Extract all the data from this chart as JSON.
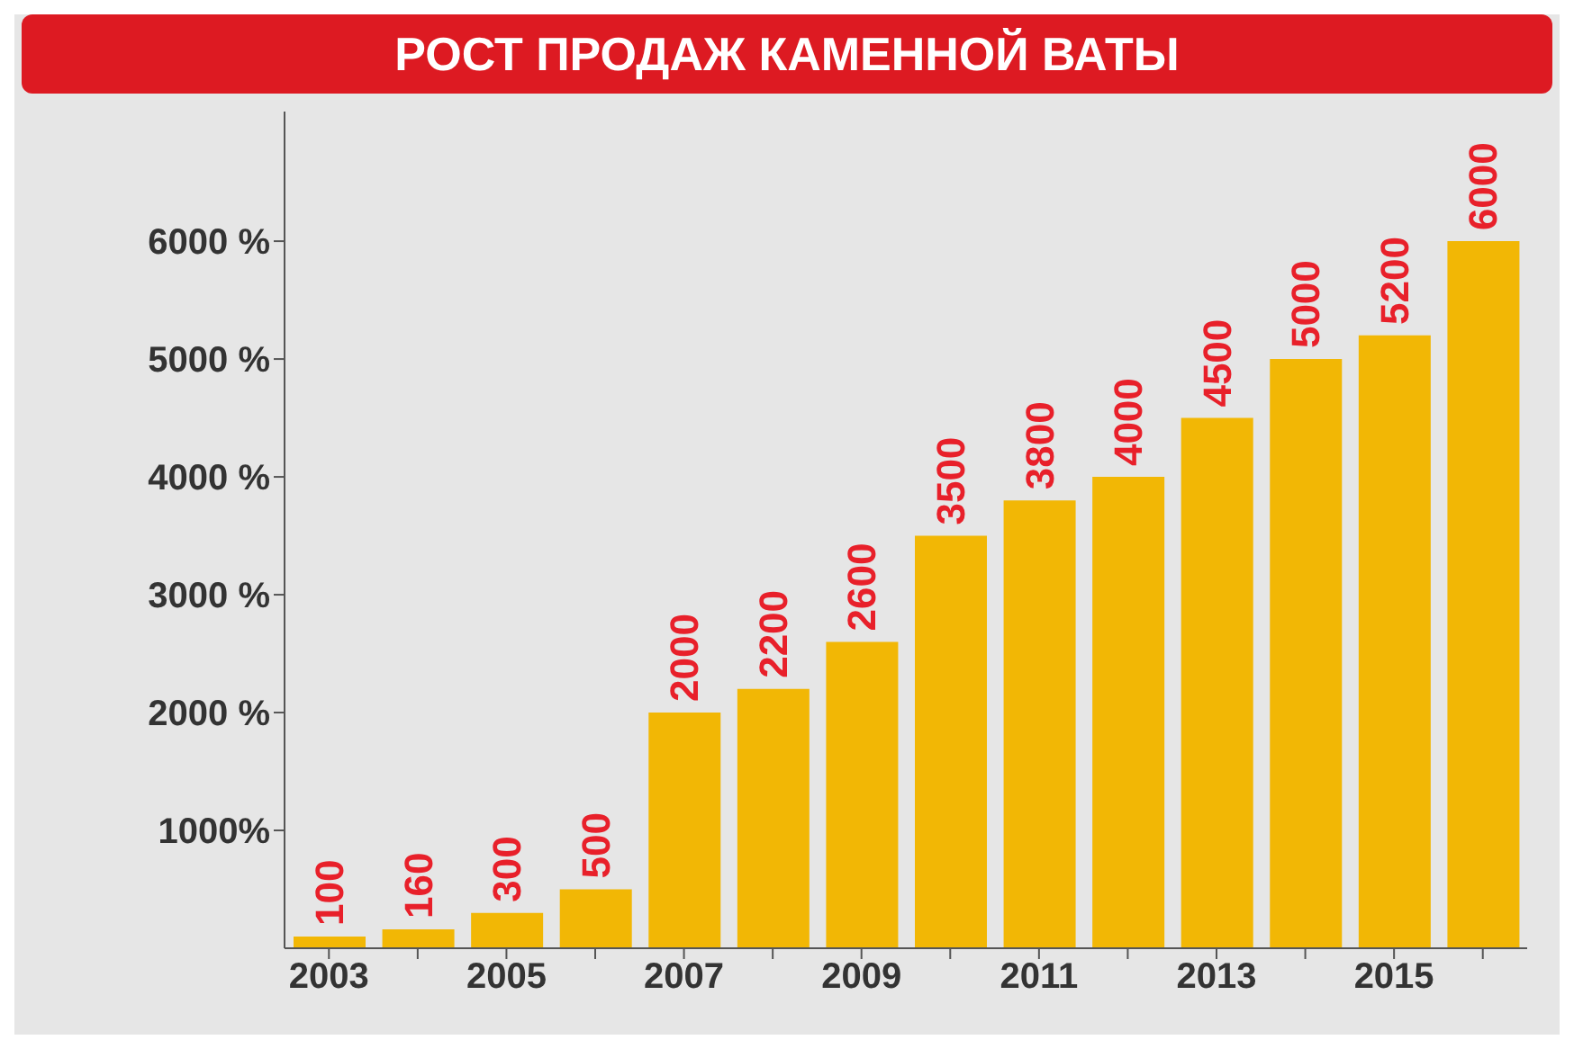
{
  "chart_data": {
    "type": "bar",
    "title": "РОСТ ПРОДАЖ КАМЕННОЙ ВАТЫ",
    "categories": [
      "2003",
      null,
      "2005",
      null,
      "2007",
      null,
      "2009",
      null,
      "2011",
      null,
      "2013",
      null,
      "2015",
      null
    ],
    "values": [
      100,
      160,
      300,
      500,
      2000,
      2200,
      2600,
      3500,
      3800,
      4000,
      4500,
      5000,
      5200,
      6000
    ],
    "color": "#f2b705",
    "ylim": [
      0,
      7100
    ],
    "yticks": [
      {
        "value": 1000,
        "label": "1000%"
      },
      {
        "value": 2000,
        "label": "2000 %"
      },
      {
        "value": 3000,
        "label": "3000 %"
      },
      {
        "value": 4000,
        "label": "4000 %"
      },
      {
        "value": 5000,
        "label": "5000 %"
      },
      {
        "value": 6000,
        "label": "6000 %"
      }
    ],
    "data_labels": true,
    "grid": false
  }
}
